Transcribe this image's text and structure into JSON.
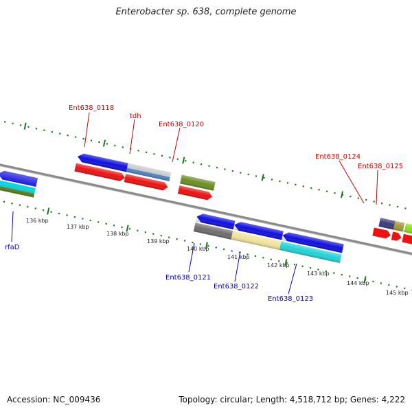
{
  "title": "Enterobacter sp. 638, complete genome",
  "footer": {
    "accession": "Accession: NC_009436",
    "summary": "Topology: circular; Length: 4,518,712 bp; Genes: 4,222"
  },
  "upper_labels": [
    "Ent638_0118",
    "tdh",
    "Ent638_0120",
    "Ent638_0124",
    "Ent638_0125"
  ],
  "lower_labels": [
    "rfaD",
    "Ent638_0121",
    "Ent638_0122",
    "Ent638_0123"
  ],
  "ticks": [
    "136 kbp",
    "137 kbp",
    "138 kbp",
    "139 kbp",
    "140 kbp",
    "141 kbp",
    "142 kbp",
    "143 kbp",
    "144 kbp",
    "145 kbp"
  ],
  "colors": {
    "label_upper": "#cc0000",
    "label_lower": "#0000cc",
    "backbone": "#888888",
    "dots": "#1a7a1a"
  }
}
